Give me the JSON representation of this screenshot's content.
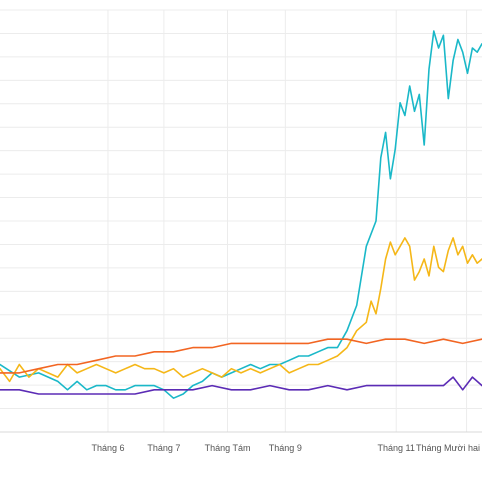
{
  "chart_data": {
    "type": "line",
    "title": "",
    "xlabel": "",
    "ylabel": "",
    "grid": true,
    "legend": "none",
    "xlim": [
      0,
      50
    ],
    "ylim": [
      0,
      10
    ],
    "x_ticks": [
      {
        "x": 11.2,
        "label": "Tháng 6"
      },
      {
        "x": 17.0,
        "label": "Tháng 7"
      },
      {
        "x": 23.6,
        "label": "Tháng Tám"
      },
      {
        "x": 29.6,
        "label": "Tháng 9"
      },
      {
        "x": 41.1,
        "label": "Tháng 11"
      },
      {
        "x": 48.4,
        "label": "Tháng Mười hai"
      }
    ],
    "series": [
      {
        "color": "#1ab8c8",
        "x": [
          0,
          2,
          4,
          5,
          6,
          7,
          8,
          9,
          10,
          11,
          12,
          13,
          14,
          15,
          16,
          17,
          18,
          19,
          20,
          21,
          22,
          23,
          24,
          25,
          26,
          27,
          28,
          29,
          30,
          31,
          32,
          33,
          34,
          35,
          36,
          37,
          38,
          39,
          39.5,
          40,
          40.5,
          41,
          41.5,
          42,
          42.5,
          43,
          43.5,
          44,
          44.5,
          45,
          45.5,
          46,
          46.5,
          47,
          47.5,
          48,
          48.5,
          49,
          49.5,
          50
        ],
        "y": [
          1.6,
          1.3,
          1.4,
          1.3,
          1.2,
          1.0,
          1.2,
          1.0,
          1.1,
          1.1,
          1.0,
          1.0,
          1.1,
          1.1,
          1.1,
          1.0,
          0.8,
          0.9,
          1.1,
          1.2,
          1.4,
          1.3,
          1.4,
          1.5,
          1.6,
          1.5,
          1.6,
          1.6,
          1.7,
          1.8,
          1.8,
          1.9,
          2.0,
          2.0,
          2.4,
          3.0,
          4.4,
          5.0,
          6.5,
          7.1,
          6.0,
          6.7,
          7.8,
          7.5,
          8.2,
          7.6,
          8.0,
          6.8,
          8.6,
          9.5,
          9.1,
          9.4,
          7.9,
          8.8,
          9.3,
          9.0,
          8.5,
          9.1,
          9.0,
          9.2
        ]
      },
      {
        "color": "#f5b718",
        "x": [
          0,
          1,
          2,
          3,
          4,
          5,
          6,
          7,
          8,
          9,
          10,
          11,
          12,
          13,
          14,
          15,
          16,
          17,
          18,
          19,
          20,
          21,
          22,
          23,
          24,
          25,
          26,
          27,
          28,
          29,
          30,
          31,
          32,
          33,
          34,
          35,
          36,
          37,
          38,
          38.5,
          39,
          39.5,
          40,
          40.5,
          41,
          41.5,
          42,
          42.5,
          43,
          43.5,
          44,
          44.5,
          45,
          45.5,
          46,
          46.5,
          47,
          47.5,
          48,
          48.5,
          49,
          49.5,
          50
        ],
        "y": [
          1.5,
          1.2,
          1.6,
          1.3,
          1.5,
          1.4,
          1.3,
          1.6,
          1.4,
          1.5,
          1.6,
          1.5,
          1.4,
          1.5,
          1.6,
          1.5,
          1.5,
          1.4,
          1.5,
          1.3,
          1.4,
          1.5,
          1.4,
          1.3,
          1.5,
          1.4,
          1.5,
          1.4,
          1.5,
          1.6,
          1.4,
          1.5,
          1.6,
          1.6,
          1.7,
          1.8,
          2.0,
          2.4,
          2.6,
          3.1,
          2.8,
          3.4,
          4.1,
          4.5,
          4.2,
          4.4,
          4.6,
          4.4,
          3.6,
          3.8,
          4.1,
          3.7,
          4.4,
          3.9,
          3.8,
          4.3,
          4.6,
          4.2,
          4.4,
          4.0,
          4.2,
          4.0,
          4.1
        ]
      },
      {
        "color": "#f26522",
        "x": [
          0,
          2,
          4,
          6,
          8,
          10,
          12,
          14,
          16,
          18,
          20,
          22,
          24,
          26,
          28,
          30,
          32,
          34,
          36,
          38,
          40,
          42,
          44,
          46,
          48,
          50
        ],
        "y": [
          1.4,
          1.4,
          1.5,
          1.6,
          1.6,
          1.7,
          1.8,
          1.8,
          1.9,
          1.9,
          2.0,
          2.0,
          2.1,
          2.1,
          2.1,
          2.1,
          2.1,
          2.2,
          2.2,
          2.1,
          2.2,
          2.2,
          2.1,
          2.2,
          2.1,
          2.2
        ]
      },
      {
        "color": "#5b2bb5",
        "x": [
          0,
          2,
          4,
          6,
          8,
          10,
          12,
          14,
          16,
          18,
          20,
          22,
          24,
          26,
          28,
          30,
          32,
          34,
          36,
          38,
          40,
          42,
          44,
          46,
          47,
          48,
          49,
          50
        ],
        "y": [
          1.0,
          1.0,
          0.9,
          0.9,
          0.9,
          0.9,
          0.9,
          0.9,
          1.0,
          1.0,
          1.0,
          1.1,
          1.0,
          1.0,
          1.1,
          1.0,
          1.0,
          1.1,
          1.0,
          1.1,
          1.1,
          1.1,
          1.1,
          1.1,
          1.3,
          1.0,
          1.3,
          1.1
        ]
      }
    ]
  }
}
